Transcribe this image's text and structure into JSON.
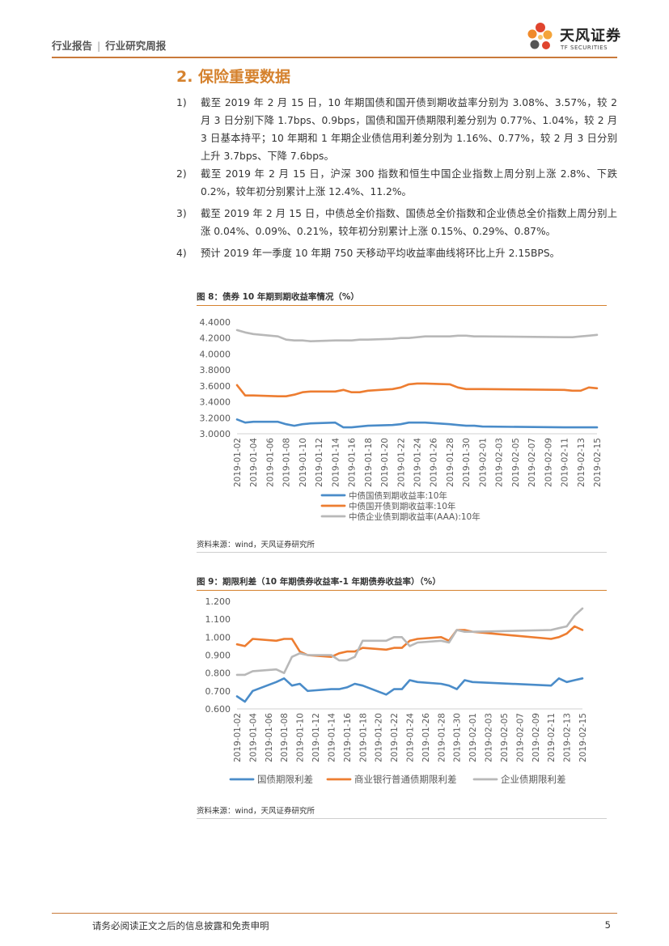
{
  "header": {
    "left_a": "行业报告",
    "separator": "|",
    "left_b": "行业研究周报",
    "logo_cn": "天风证券",
    "logo_en": "TF SECURITIES"
  },
  "section_title": "2. 保险重要数据",
  "items": [
    {
      "num": "1)",
      "text": "截至 2019 年 2 月 15 日，10 年期国债和国开债到期收益率分别为 3.08%、3.57%，较 2 月 3 日分别下降 1.7bps、0.9bps，国债和国开债期限利差分别为 0.77%、1.04%，较 2 月 3 日基本持平；10 年期和 1 年期企业债信用利差分别为 1.16%、0.77%，较 2 月 3 日分别上升 3.7bps、下降 7.6bps。"
    },
    {
      "num": "2)",
      "text": "截至 2019 年 2 月 15 日，沪深 300 指数和恒生中国企业指数上周分别上涨 2.8%、下跌 0.2%，较年初分别累计上涨 12.4%、11.2%。"
    },
    {
      "num": "3)",
      "text": "截至 2019 年 2 月 15 日，中债总全价指数、国债总全价指数和企业债总全价指数上周分别上涨 0.04%、0.09%、0.21%，较年初分别累计上涨 0.15%、0.29%、0.87%。"
    },
    {
      "num": "4)",
      "text": "预计 2019 年一季度 10 年期 750 天移动平均收益率曲线将环比上升 2.15BPS。"
    }
  ],
  "figures": [
    {
      "title": "图 8：债券 10 年期到期收益率情况（%）",
      "source": "资料来源：wind，天风证券研究所"
    },
    {
      "title": "图 9：期限利差（10 年期债券收益率-1 年期债券收益率）（%）",
      "source": "资料来源：wind，天风证券研究所"
    }
  ],
  "footer": {
    "disclaimer": "请务必阅读正文之后的信息披露和免责申明",
    "page": "5"
  },
  "colors": {
    "accent": "#d5822e",
    "blue": "#4a8cc9",
    "orange": "#ed7d31",
    "gray": "#b8b8b8"
  },
  "chart_data": [
    {
      "type": "line",
      "ylim": [
        3.0,
        4.4
      ],
      "yticks": [
        "3.0000",
        "3.2000",
        "3.4000",
        "3.6000",
        "3.8000",
        "4.0000",
        "4.2000",
        "4.4000"
      ],
      "x": [
        "2019-01-02",
        "2019-01-03",
        "2019-01-04",
        "2019-01-07",
        "2019-01-08",
        "2019-01-09",
        "2019-01-10",
        "2019-01-11",
        "2019-01-14",
        "2019-01-15",
        "2019-01-16",
        "2019-01-17",
        "2019-01-18",
        "2019-01-21",
        "2019-01-22",
        "2019-01-23",
        "2019-01-24",
        "2019-01-25",
        "2019-01-28",
        "2019-01-29",
        "2019-01-30",
        "2019-01-31",
        "2019-02-01",
        "2019-02-11",
        "2019-02-12",
        "2019-02-13",
        "2019-02-14",
        "2019-02-15"
      ],
      "xticks": [
        "2019-01-02",
        "2019-01-04",
        "2019-01-06",
        "2019-01-08",
        "2019-01-10",
        "2019-01-12",
        "2019-01-14",
        "2019-01-16",
        "2019-01-18",
        "2019-01-20",
        "2019-01-22",
        "2019-01-24",
        "2019-01-26",
        "2019-01-28",
        "2019-01-30",
        "2019-02-01",
        "2019-02-03",
        "2019-02-05",
        "2019-02-07",
        "2019-02-09",
        "2019-02-11",
        "2019-02-13",
        "2019-02-15"
      ],
      "legend_position": "bottom",
      "series": [
        {
          "name": "中债国债到期收益率:10年",
          "color": "#4a8cc9",
          "values": [
            3.18,
            3.14,
            3.15,
            3.15,
            3.12,
            3.1,
            3.12,
            3.13,
            3.14,
            3.08,
            3.08,
            3.09,
            3.1,
            3.11,
            3.12,
            3.14,
            3.14,
            3.14,
            3.12,
            3.11,
            3.1,
            3.1,
            3.09,
            3.08,
            3.08,
            3.08,
            3.08,
            3.08
          ]
        },
        {
          "name": "中债国开债到期收益率:10年",
          "color": "#ed7d31",
          "values": [
            3.61,
            3.48,
            3.48,
            3.47,
            3.47,
            3.49,
            3.52,
            3.53,
            3.53,
            3.55,
            3.52,
            3.52,
            3.54,
            3.56,
            3.58,
            3.62,
            3.63,
            3.63,
            3.62,
            3.58,
            3.56,
            3.56,
            3.56,
            3.55,
            3.54,
            3.54,
            3.58,
            3.57
          ]
        },
        {
          "name": "中债企业债到期收益率(AAA):10年",
          "color": "#b8b8b8",
          "values": [
            4.3,
            4.27,
            4.25,
            4.22,
            4.18,
            4.17,
            4.17,
            4.16,
            4.17,
            4.17,
            4.17,
            4.18,
            4.18,
            4.19,
            4.2,
            4.2,
            4.21,
            4.22,
            4.22,
            4.23,
            4.23,
            4.22,
            4.22,
            4.21,
            4.21,
            4.22,
            4.23,
            4.24
          ]
        }
      ]
    },
    {
      "type": "line",
      "ylim": [
        0.6,
        1.2
      ],
      "yticks": [
        "0.600",
        "0.700",
        "0.800",
        "0.900",
        "1.000",
        "1.100",
        "1.200"
      ],
      "x": [
        "2019-01-02",
        "2019-01-03",
        "2019-01-04",
        "2019-01-07",
        "2019-01-08",
        "2019-01-09",
        "2019-01-10",
        "2019-01-11",
        "2019-01-14",
        "2019-01-15",
        "2019-01-16",
        "2019-01-17",
        "2019-01-18",
        "2019-01-21",
        "2019-01-22",
        "2019-01-23",
        "2019-01-24",
        "2019-01-25",
        "2019-01-28",
        "2019-01-29",
        "2019-01-30",
        "2019-01-31",
        "2019-02-01",
        "2019-02-11",
        "2019-02-12",
        "2019-02-13",
        "2019-02-14",
        "2019-02-15"
      ],
      "xticks": [
        "2019-01-02",
        "2019-01-04",
        "2019-01-06",
        "2019-01-08",
        "2019-01-10",
        "2019-01-12",
        "2019-01-14",
        "2019-01-16",
        "2019-01-18",
        "2019-01-20",
        "2019-01-22",
        "2019-01-24",
        "2019-01-26",
        "2019-01-28",
        "2019-01-30",
        "2019-02-01",
        "2019-02-03",
        "2019-02-05",
        "2019-02-07",
        "2019-02-09",
        "2019-02-11",
        "2019-02-13",
        "2019-02-15"
      ],
      "legend_position": "bottom",
      "series": [
        {
          "name": "国债期限利差",
          "color": "#4a8cc9",
          "values": [
            0.67,
            0.64,
            0.7,
            0.75,
            0.77,
            0.73,
            0.74,
            0.7,
            0.71,
            0.71,
            0.72,
            0.74,
            0.73,
            0.68,
            0.71,
            0.71,
            0.76,
            0.75,
            0.74,
            0.73,
            0.71,
            0.76,
            0.75,
            0.73,
            0.77,
            0.75,
            0.76,
            0.77
          ]
        },
        {
          "name": "商业银行普通债期限利差",
          "color": "#ed7d31",
          "values": [
            0.96,
            0.95,
            0.99,
            0.98,
            0.99,
            0.99,
            0.92,
            0.9,
            0.89,
            0.91,
            0.92,
            0.92,
            0.94,
            0.93,
            0.94,
            0.94,
            0.98,
            0.99,
            1.0,
            0.98,
            1.04,
            1.04,
            1.03,
            0.99,
            1.0,
            1.02,
            1.06,
            1.04
          ]
        },
        {
          "name": "企业债期限利差",
          "color": "#b8b8b8",
          "values": [
            0.79,
            0.79,
            0.81,
            0.82,
            0.8,
            0.89,
            0.91,
            0.9,
            0.9,
            0.87,
            0.87,
            0.89,
            0.98,
            0.98,
            1.0,
            1.0,
            0.95,
            0.97,
            0.98,
            0.97,
            1.04,
            1.03,
            1.03,
            1.04,
            1.05,
            1.06,
            1.12,
            1.16
          ]
        }
      ]
    }
  ]
}
